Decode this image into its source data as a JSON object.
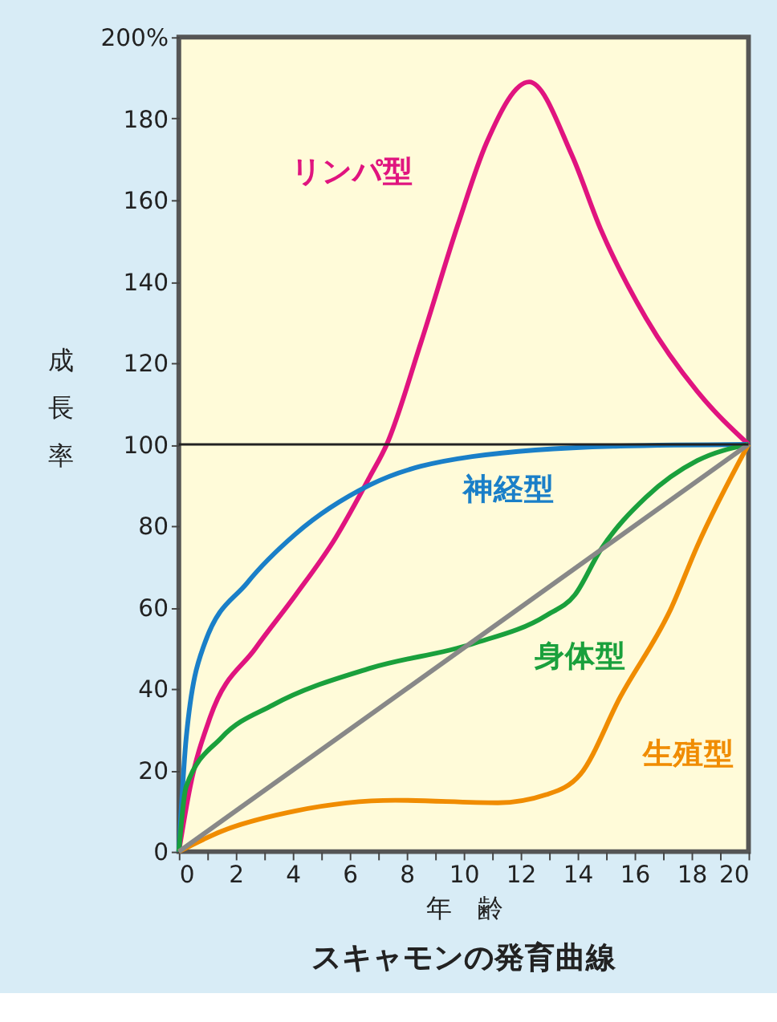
{
  "chart_data": {
    "type": "line",
    "title": "スキャモンの発育曲線",
    "xlabel": "年　齢",
    "ylabel": "成長率",
    "xlim": [
      0,
      20
    ],
    "ylim": [
      0,
      200
    ],
    "xticks": [
      0,
      {
        "value": 1,
        "label": null
      },
      2,
      {
        "value": 3,
        "label": null
      },
      4,
      {
        "value": 5,
        "label": null
      },
      6,
      {
        "value": 7,
        "label": null
      },
      8,
      {
        "value": 9,
        "label": null
      },
      10,
      {
        "value": 11,
        "label": null
      },
      12,
      {
        "value": 13,
        "label": null
      },
      14,
      {
        "value": 15,
        "label": null
      },
      16,
      {
        "value": 17,
        "label": null
      },
      18,
      {
        "value": 19,
        "label": null
      },
      20
    ],
    "yticks": [
      0,
      20,
      40,
      60,
      80,
      100,
      120,
      140,
      160,
      180,
      {
        "value": 200,
        "label": "200%"
      }
    ],
    "grid": false,
    "legend": false,
    "marker": "none",
    "line_style": "solid",
    "ref_lines": [
      {
        "axis": "y",
        "value": 100,
        "color": "#222222"
      }
    ],
    "series": [
      {
        "name": "リンパ型",
        "color": "#e0147f",
        "x": [
          0,
          0.4,
          1.1,
          2.7,
          4.1,
          5.5,
          6.7,
          7.3,
          8.5,
          9.8,
          10.8,
          12.3,
          13.8,
          14.8,
          16.4,
          18.2,
          20
        ],
        "values": [
          0,
          16,
          33,
          50,
          63,
          77,
          92,
          100,
          125,
          154,
          174,
          189,
          171,
          153,
          131,
          113,
          100
        ]
      },
      {
        "name": "神経型",
        "color": "#1a7fc8",
        "x": [
          0,
          0.26,
          0.9,
          2.4,
          4.1,
          6.7,
          10.3,
          15.5,
          20
        ],
        "values": [
          0,
          28,
          51,
          66,
          78,
          90,
          97,
          99.6,
          100
        ]
      },
      {
        "name": "身体型",
        "color": "#1aa03c",
        "x": [
          0,
          0.26,
          1.5,
          3.3,
          6.7,
          10.3,
          12.9,
          13.9,
          14.8,
          16.4,
          18.2,
          20
        ],
        "values": [
          0,
          16,
          28,
          36,
          45,
          51,
          58,
          63,
          74,
          87,
          96,
          100
        ]
      },
      {
        "name": "生殖型",
        "color": "#f08c00",
        "x": [
          0,
          1.5,
          4.1,
          7.6,
          11.2,
          12.9,
          14.1,
          15.5,
          17.3,
          18.2,
          20
        ],
        "values": [
          0,
          5,
          10,
          12.6,
          12,
          14,
          19,
          38,
          60,
          75,
          100
        ]
      },
      {
        "color": "#888888",
        "x": [
          0,
          20
        ],
        "values": [
          0,
          100
        ]
      }
    ]
  }
}
